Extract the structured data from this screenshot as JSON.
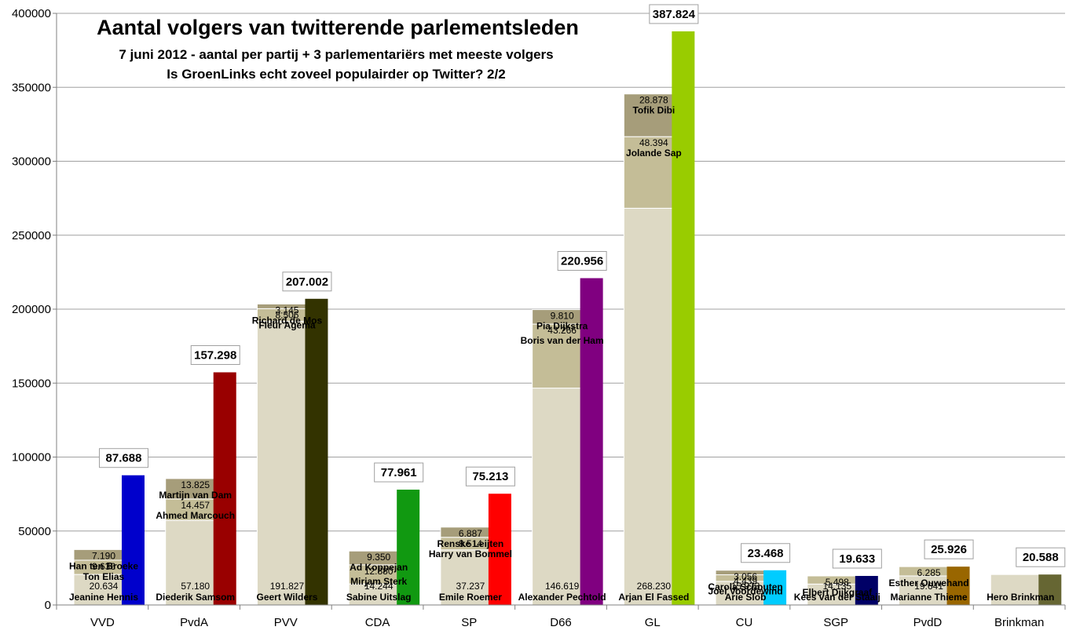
{
  "chart_data": {
    "type": "bar",
    "title": "Aantal volgers van twitterende parlementsleden",
    "subtitles": [
      "7 juni 2012 - aantal per partij + 3 parlementariërs met meeste volgers",
      "Is GroenLinks echt zoveel populairder op Twitter? 2/2"
    ],
    "ylim": [
      0,
      400000
    ],
    "yticks": [
      "0",
      "50000",
      "100000",
      "150000",
      "200000",
      "250000",
      "300000",
      "350000",
      "400000"
    ],
    "ytick_values": [
      0,
      50000,
      100000,
      150000,
      200000,
      250000,
      300000,
      350000,
      400000
    ],
    "grid": true,
    "categories": [
      "VVD",
      "PvdA",
      "PVV",
      "CDA",
      "SP",
      "D66",
      "GL",
      "CU",
      "SGP",
      "PvdD",
      "Brinkman"
    ],
    "colors": {
      "segment_bottom": "#ddd9c4",
      "segment_middle": "#c4bd97",
      "segment_top": "#a69d7a",
      "segment_border": "#ffffff",
      "grid": "#a0a0a0",
      "axis": "#808080"
    },
    "parties": [
      {
        "category": "VVD",
        "total": 87688,
        "total_label": "87.688",
        "color": "#0000cc",
        "members": [
          {
            "name": "Jeanine Hennis",
            "value": 20634,
            "label": "20.634"
          },
          {
            "name": "Ton Elias",
            "value": 9636,
            "label": "9.636"
          },
          {
            "name": "Han ten Broeke",
            "value": 7190,
            "label": "7.190"
          }
        ]
      },
      {
        "category": "PvdA",
        "total": 157298,
        "total_label": "157.298",
        "color": "#990000",
        "members": [
          {
            "name": "Diederik Samsom",
            "value": 57180,
            "label": "57.180"
          },
          {
            "name": "Ahmed Marcouch",
            "value": 14457,
            "label": "14.457"
          },
          {
            "name": "Martijn van Dam",
            "value": 13825,
            "label": "13.825"
          }
        ]
      },
      {
        "category": "PVV",
        "total": 207002,
        "total_label": "207.002",
        "color": "#333300",
        "members": [
          {
            "name": "Geert Wilders",
            "value": 191827,
            "label": "191.827"
          },
          {
            "name": "Fleur Agema",
            "value": 8506,
            "label": "8.506"
          },
          {
            "name": "Richard de Mos",
            "value": 3145,
            "label": "3.145"
          }
        ]
      },
      {
        "category": "CDA",
        "total": 77961,
        "total_label": "77.961",
        "color": "#119911",
        "members": [
          {
            "name": "Sabine Uitslag",
            "value": 14244,
            "label": "14.244"
          },
          {
            "name": "Mirjam Sterk",
            "value": 12880,
            "label": "12.880"
          },
          {
            "name": "Ad Koppejan",
            "value": 9350,
            "label": "9.350"
          }
        ]
      },
      {
        "category": "SP",
        "total": 75213,
        "total_label": "75.213",
        "color": "#ff0000",
        "members": [
          {
            "name": "Emile Roemer",
            "value": 37237,
            "label": "37.237"
          },
          {
            "name": "Harry van Bommel",
            "value": 8514,
            "label": "8.514"
          },
          {
            "name": "Renske Leijten",
            "value": 6887,
            "label": "6.887"
          }
        ]
      },
      {
        "category": "D66",
        "total": 220956,
        "total_label": "220.956",
        "color": "#800080",
        "members": [
          {
            "name": "Alexander Pechtold",
            "value": 146619,
            "label": "146.619"
          },
          {
            "name": "Boris van der Ham",
            "value": 43266,
            "label": "43.266"
          },
          {
            "name": "Pia Dijkstra",
            "value": 9810,
            "label": "9.810"
          }
        ]
      },
      {
        "category": "GL",
        "total": 387824,
        "total_label": "387.824",
        "color": "#99cc00",
        "members": [
          {
            "name": "Arjan El Fassed",
            "value": 268230,
            "label": "268.230"
          },
          {
            "name": "Jolande Sap",
            "value": 48394,
            "label": "48.394"
          },
          {
            "name": "Tofik Dibi",
            "value": 28878,
            "label": "28.878"
          }
        ]
      },
      {
        "category": "CU",
        "total": 23468,
        "total_label": "23.468",
        "color": "#00ccff",
        "members": [
          {
            "name": "Arie Slob",
            "value": 15973,
            "label": "15.973"
          },
          {
            "name": "Joel Voordewind",
            "value": 4439,
            "label": "4.439"
          },
          {
            "name": "Carola Schouten",
            "value": 3056,
            "label": "3.056"
          }
        ]
      },
      {
        "category": "SGP",
        "total": 19633,
        "total_label": "19.633",
        "color": "#000066",
        "members": [
          {
            "name": "Kees van der Staaij",
            "value": 14135,
            "label": "14.135"
          },
          {
            "name": "Elbert Dijkgraaf",
            "value": 5498,
            "label": "5.498"
          }
        ]
      },
      {
        "category": "PvdD",
        "total": 25926,
        "total_label": "25.926",
        "color": "#996600",
        "members": [
          {
            "name": "Marianne Thieme",
            "value": 19641,
            "label": "19.641"
          },
          {
            "name": "Esther Ouwehand",
            "value": 6285,
            "label": "6.285"
          }
        ]
      },
      {
        "category": "Brinkman",
        "total": 20588,
        "total_label": "20.588",
        "color": "#666633",
        "members": [
          {
            "name": "Hero Brinkman",
            "value": 20588,
            "label": ""
          }
        ]
      }
    ]
  }
}
